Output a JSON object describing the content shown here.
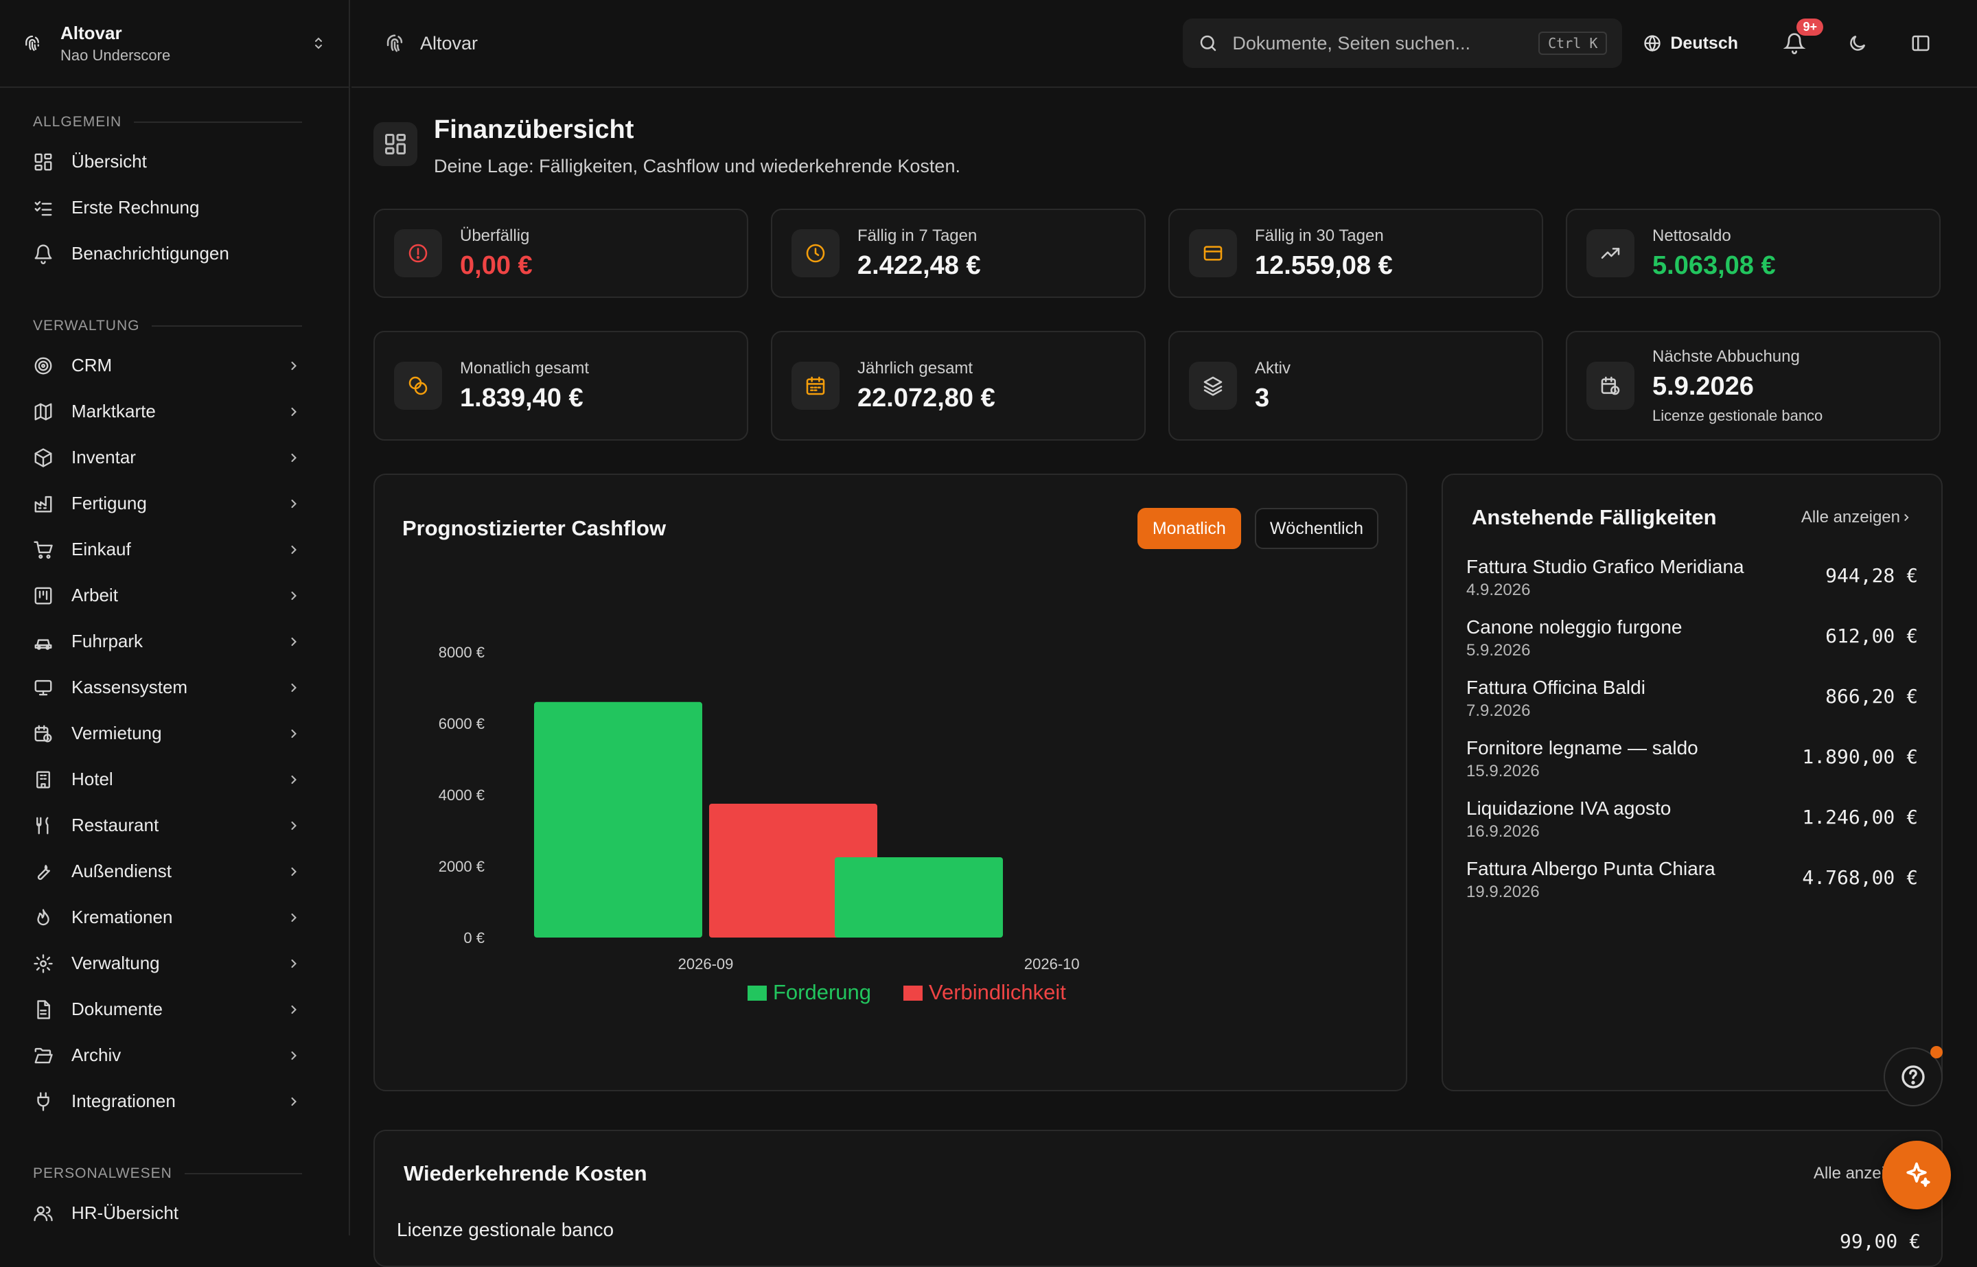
{
  "brand": {
    "name": "Altovar",
    "user": "Nao Underscore"
  },
  "topbar": {
    "crumb": "Altovar",
    "search_placeholder": "Dokumente, Seiten suchen...",
    "shortcut": "Ctrl K",
    "language": "Deutsch",
    "notification_badge": "9+"
  },
  "sidebar": {
    "sections": [
      {
        "title": "ALLGEMEIN",
        "items": [
          {
            "label": "Übersicht",
            "icon": "grid-icon"
          },
          {
            "label": "Erste Rechnung",
            "icon": "checklist-icon"
          },
          {
            "label": "Benachrichtigungen",
            "icon": "bell-icon"
          }
        ]
      },
      {
        "title": "VERWALTUNG",
        "items": [
          {
            "label": "CRM",
            "icon": "target-icon"
          },
          {
            "label": "Marktkarte",
            "icon": "map-icon"
          },
          {
            "label": "Inventar",
            "icon": "box-icon"
          },
          {
            "label": "Fertigung",
            "icon": "factory-icon"
          },
          {
            "label": "Einkauf",
            "icon": "cart-icon"
          },
          {
            "label": "Arbeit",
            "icon": "kanban-icon"
          },
          {
            "label": "Fuhrpark",
            "icon": "car-icon"
          },
          {
            "label": "Kassensystem",
            "icon": "monitor-icon"
          },
          {
            "label": "Vermietung",
            "icon": "calendar-clock-icon"
          },
          {
            "label": "Hotel",
            "icon": "building-icon"
          },
          {
            "label": "Restaurant",
            "icon": "utensils-icon"
          },
          {
            "label": "Außendienst",
            "icon": "wrench-icon"
          },
          {
            "label": "Kremationen",
            "icon": "flame-icon"
          },
          {
            "label": "Verwaltung",
            "icon": "gear-icon"
          },
          {
            "label": "Dokumente",
            "icon": "file-icon"
          },
          {
            "label": "Archiv",
            "icon": "folder-open-icon"
          },
          {
            "label": "Integrationen",
            "icon": "plug-icon"
          }
        ]
      },
      {
        "title": "PERSONALWESEN",
        "items": [
          {
            "label": "HR-Übersicht",
            "icon": "users-icon"
          }
        ]
      }
    ]
  },
  "page": {
    "title": "Finanzübersicht",
    "subtitle": "Deine Lage: Fälligkeiten, Cashflow und wiederkehrende Kosten."
  },
  "stats": [
    {
      "label": "Überfällig",
      "value": "0,00 €",
      "tone": "red",
      "icon": "alert-circle-icon"
    },
    {
      "label": "Fällig in 7 Tagen",
      "value": "2.422,48 €",
      "tone": "",
      "icon": "clock-icon"
    },
    {
      "label": "Fällig in 30 Tagen",
      "value": "12.559,08 €",
      "tone": "",
      "icon": "credit-card-icon"
    },
    {
      "label": "Nettosaldo",
      "value": "5.063,08 €",
      "tone": "green",
      "icon": "trending-up-icon"
    },
    {
      "label": "Monatlich gesamt",
      "value": "1.839,40 €",
      "tone": "",
      "icon": "coins-icon"
    },
    {
      "label": "Jährlich gesamt",
      "value": "22.072,80 €",
      "tone": "",
      "icon": "calendar-icon"
    },
    {
      "label": "Aktiv",
      "value": "3",
      "tone": "",
      "icon": "layers-icon"
    },
    {
      "label": "Nächste Abbuchung",
      "value": "5.9.2026",
      "note": "Licenze gestionale banco",
      "tone": "",
      "icon": "calendar-clock-icon"
    }
  ],
  "cashflow": {
    "title": "Prognostizierter Cashflow",
    "toggle": {
      "monthly": "Monatlich",
      "weekly": "Wöchentlich"
    }
  },
  "chart_data": {
    "type": "bar",
    "title": "Prognostizierter Cashflow",
    "categories": [
      "2026-09",
      "2026-10"
    ],
    "series": [
      {
        "name": "Forderung",
        "values": [
          6600,
          2250
        ],
        "color": "#22c55e"
      },
      {
        "name": "Verbindlichkeit",
        "values": [
          3750,
          0
        ],
        "color": "#ef4444"
      }
    ],
    "yticks": [
      "0 €",
      "2000 €",
      "4000 €",
      "6000 €",
      "8000 €"
    ],
    "ylim": [
      0,
      8000
    ],
    "legend": "bottom"
  },
  "upcoming": {
    "title": "Anstehende Fälligkeiten",
    "view_all": "Alle anzeigen",
    "items": [
      {
        "title": "Fattura Studio Grafico Meridiana",
        "date": "4.9.2026",
        "amount": "944,28 €"
      },
      {
        "title": "Canone noleggio furgone",
        "date": "5.9.2026",
        "amount": "612,00 €"
      },
      {
        "title": "Fattura Officina Baldi",
        "date": "7.9.2026",
        "amount": "866,20 €"
      },
      {
        "title": "Fornitore legname — saldo",
        "date": "15.9.2026",
        "amount": "1.890,00 €"
      },
      {
        "title": "Liquidazione IVA agosto",
        "date": "16.9.2026",
        "amount": "1.246,00 €"
      },
      {
        "title": "Fattura Albergo Punta Chiara",
        "date": "19.9.2026",
        "amount": "4.768,00 €"
      }
    ]
  },
  "recurring": {
    "title": "Wiederkehrende Kosten",
    "view_all": "Alle anzeigen",
    "first_item": "Licenze gestionale banco",
    "first_amount": "99,00 €"
  }
}
